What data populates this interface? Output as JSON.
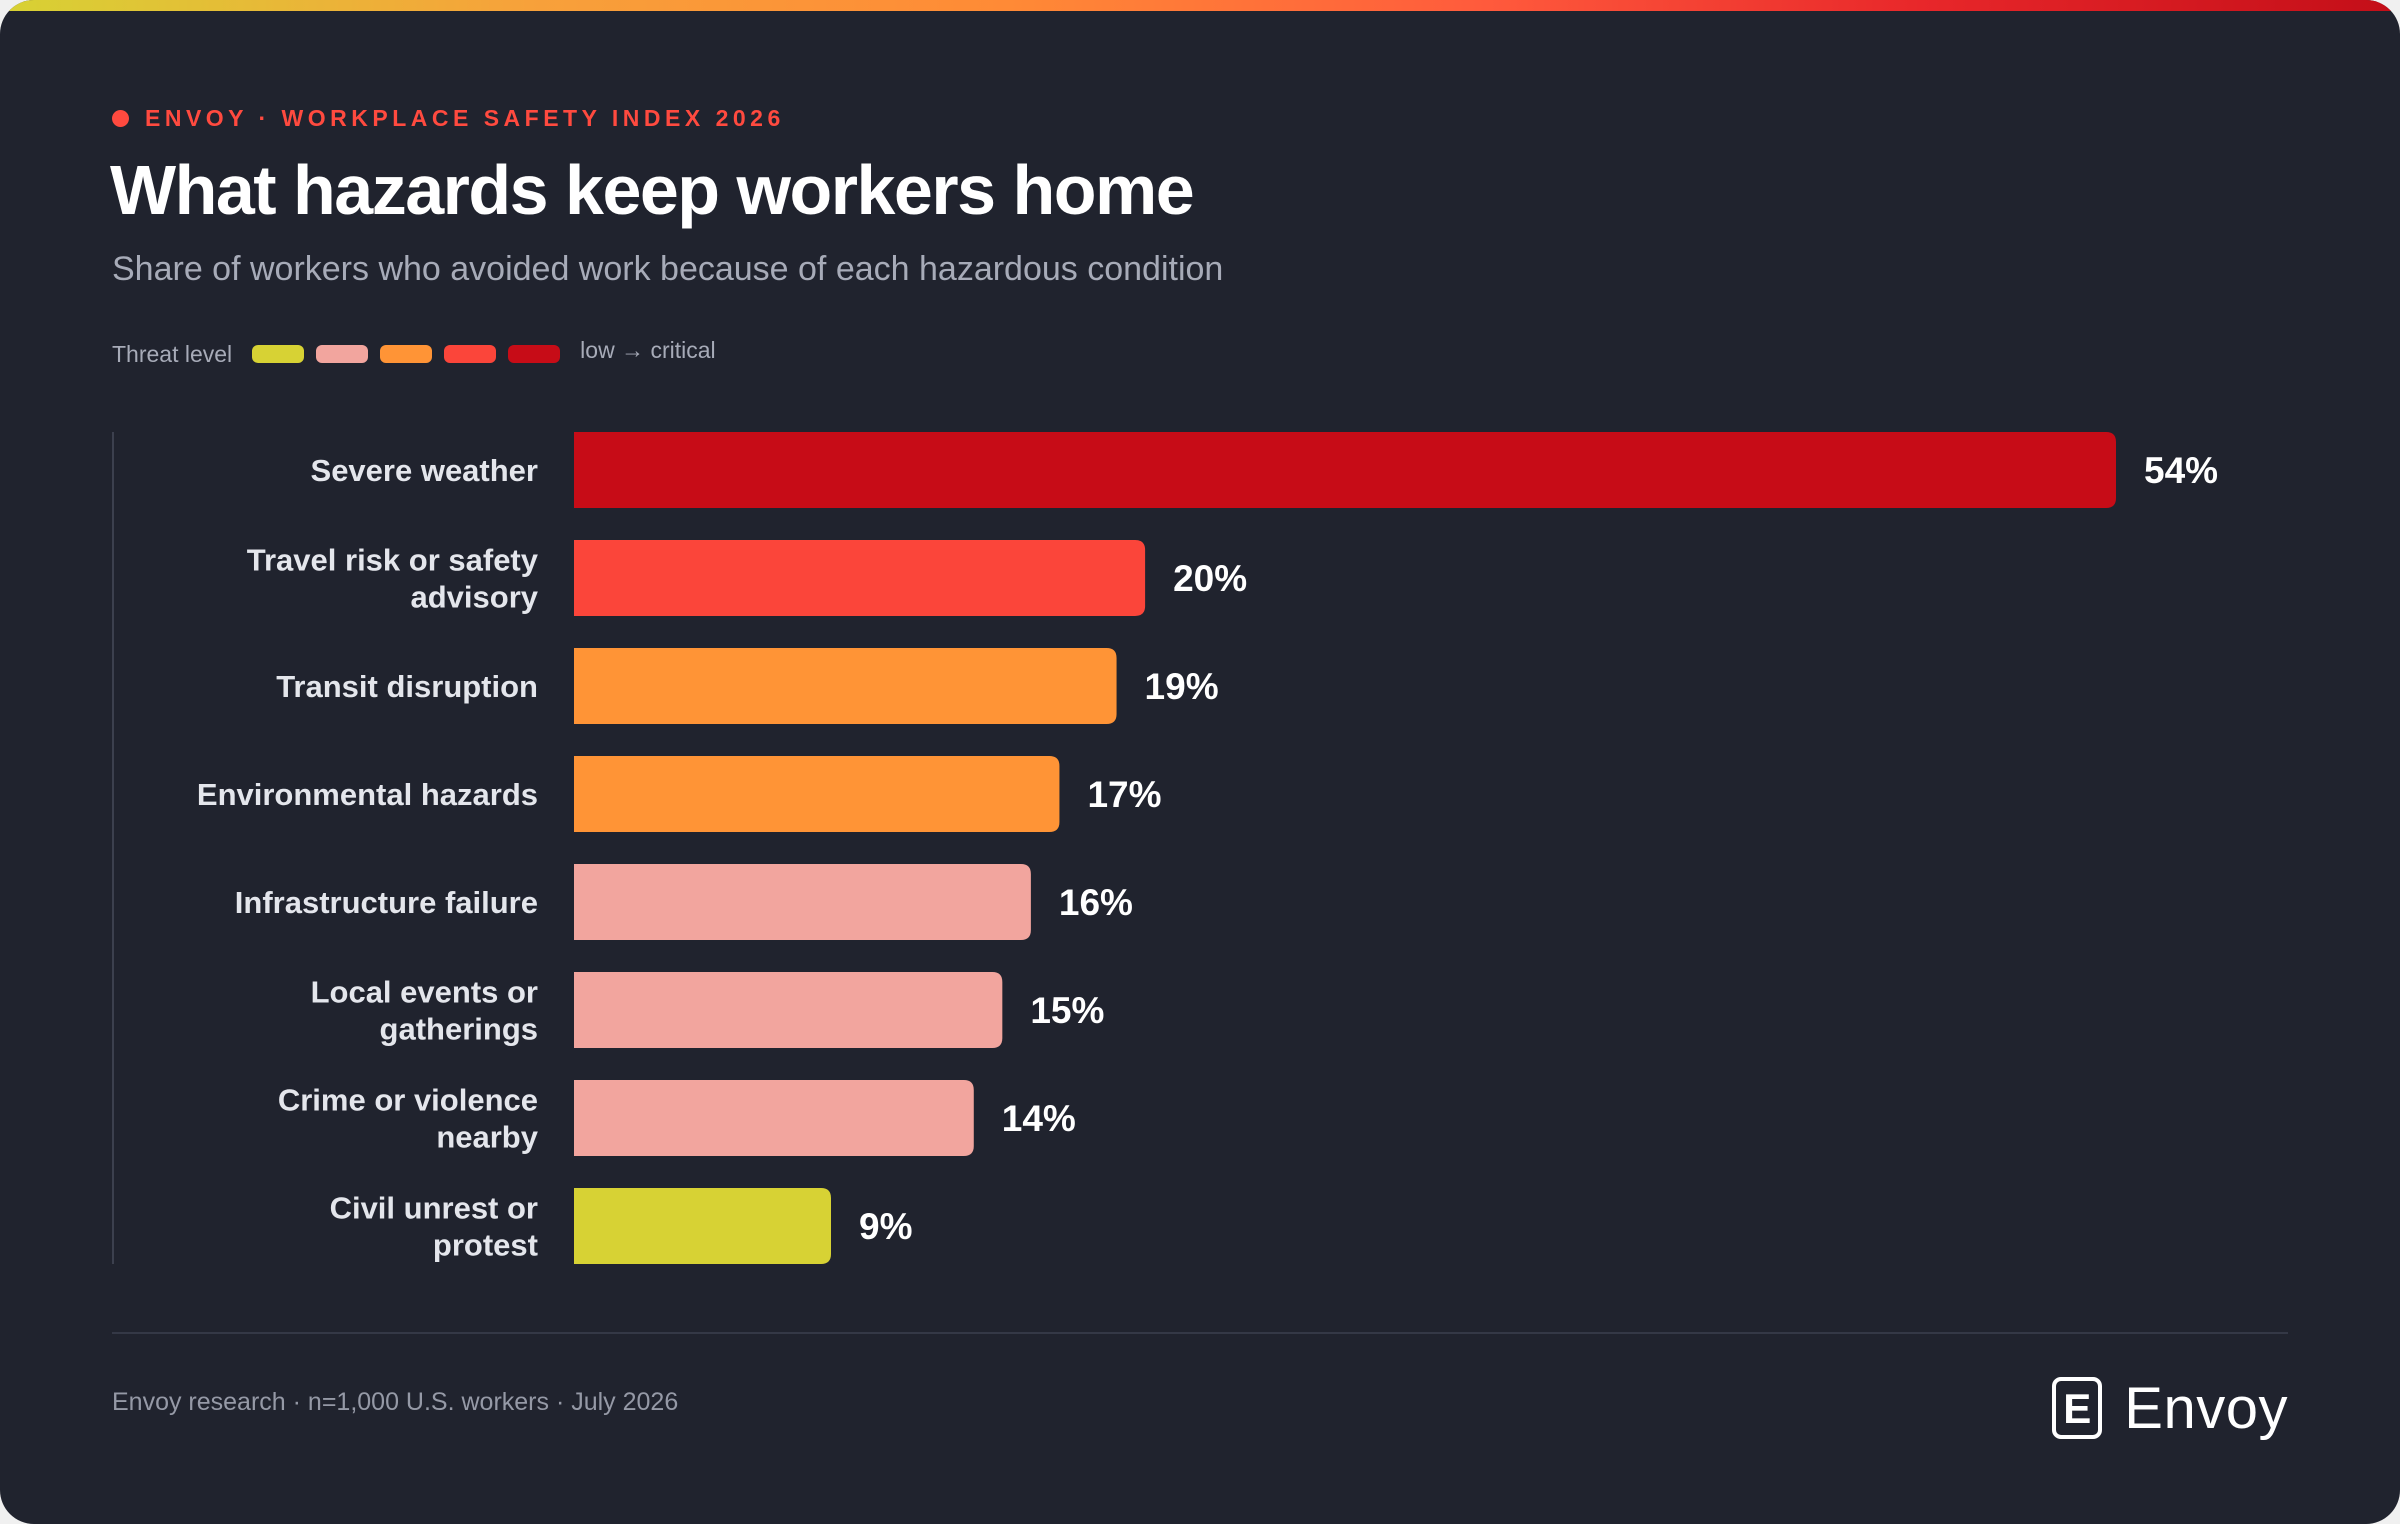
{
  "header": {
    "eyebrow": "ENVOY · WORKPLACE SAFETY INDEX 2026",
    "title": "What hazards keep workers home",
    "subtitle": "Share of workers who avoided work because of each hazardous condition"
  },
  "legend": {
    "label": "Threat level",
    "range_text": "low → critical",
    "swatches": [
      "#d7d234",
      "#f2a59e",
      "#ff9436",
      "#fb453a",
      "#c70c17"
    ]
  },
  "footer": {
    "source": "Envoy research · n=1,000 U.S. workers · July 2026",
    "brand_name": "Envoy",
    "brand_glyph": "E"
  },
  "chart_data": {
    "type": "bar",
    "orientation": "horizontal",
    "categories": [
      "Severe weather",
      "Travel risk or safety advisory",
      "Transit disruption",
      "Environmental hazards",
      "Infrastructure failure",
      "Local events or gatherings",
      "Crime or violence nearby",
      "Civil unrest or protest"
    ],
    "values": [
      54,
      20,
      19,
      17,
      16,
      15,
      14,
      9
    ],
    "value_labels": [
      "54%",
      "20%",
      "19%",
      "17%",
      "16%",
      "15%",
      "14%",
      "9%"
    ],
    "bar_colors": [
      "#c70c17",
      "#fb453a",
      "#ff9436",
      "#ff9436",
      "#f2a59e",
      "#f2a59e",
      "#f2a59e",
      "#d7d234"
    ],
    "xlim": [
      0,
      54
    ],
    "grid": false,
    "unit": "%"
  }
}
